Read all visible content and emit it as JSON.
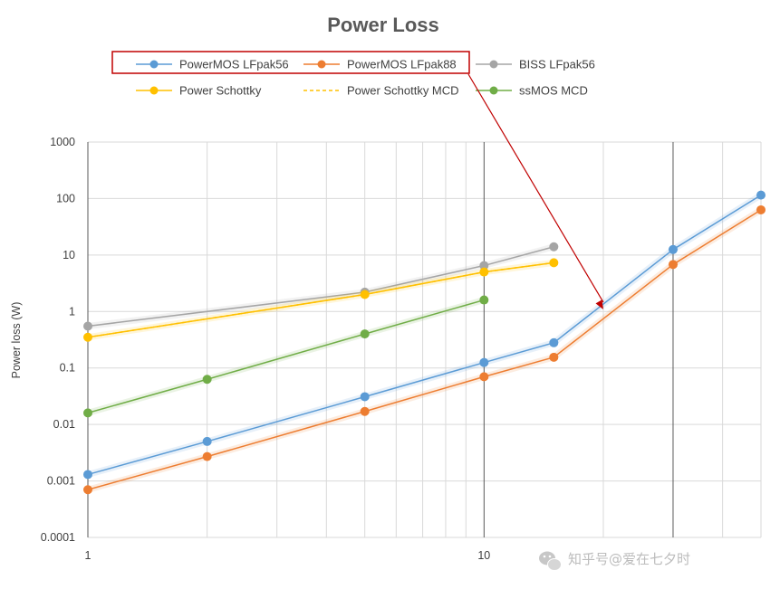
{
  "chart_data": {
    "type": "line",
    "title": "Power Loss",
    "xlabel": "",
    "ylabel": "Power loss (W)",
    "x_scale": "log",
    "y_scale": "log",
    "xlim": [
      1,
      50
    ],
    "ylim": [
      0.0001,
      1000
    ],
    "x_tick_labels": [
      "1",
      "10"
    ],
    "y_tick_labels": [
      "0.0001",
      "0.001",
      "0.01",
      "0.1",
      "1",
      "10",
      "100",
      "1000"
    ],
    "grid": true,
    "legend_position": "top",
    "series": [
      {
        "name": "PowerMOS LFpak56",
        "color": "#5B9BD5",
        "dashed": false,
        "x": [
          1,
          2,
          5,
          10,
          15,
          30,
          50
        ],
        "y": [
          0.0013,
          0.005,
          0.031,
          0.125,
          0.28,
          12.5,
          115
        ]
      },
      {
        "name": "PowerMOS LFpak88",
        "color": "#ED7D31",
        "dashed": false,
        "x": [
          1,
          2,
          5,
          10,
          15,
          30,
          50
        ],
        "y": [
          0.0007,
          0.0027,
          0.017,
          0.07,
          0.155,
          6.8,
          63
        ]
      },
      {
        "name": "BISS LFpak56",
        "color": "#A5A5A5",
        "dashed": false,
        "x": [
          1,
          5,
          10,
          15
        ],
        "y": [
          0.55,
          2.2,
          6.5,
          14
        ]
      },
      {
        "name": "Power Schottky",
        "color": "#FFC000",
        "dashed": false,
        "x": [
          1,
          5,
          10,
          15
        ],
        "y": [
          0.35,
          2.0,
          5.0,
          7.3
        ]
      },
      {
        "name": "Power Schottky MCD",
        "color": "#FFC000",
        "dashed": true,
        "x": [
          1,
          5,
          10,
          15
        ],
        "y": [
          0.35,
          2.0,
          5.0,
          7.3
        ]
      },
      {
        "name": "ssMOS MCD",
        "color": "#70AD47",
        "dashed": false,
        "x": [
          1,
          2,
          5,
          10
        ],
        "y": [
          0.016,
          0.063,
          0.4,
          1.6
        ]
      }
    ],
    "annotation": {
      "type": "arrow",
      "color": "#C00000",
      "from_series": [
        "PowerMOS LFpak56",
        "PowerMOS LFpak88"
      ],
      "target_x": 20
    }
  },
  "watermark": {
    "text": "知乎号@爱在七夕时",
    "icon": "wechat-icon"
  }
}
